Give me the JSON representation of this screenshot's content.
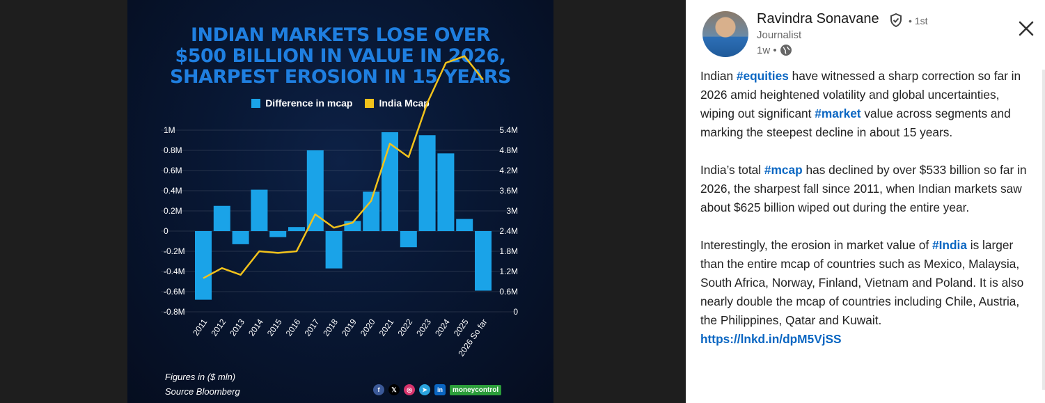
{
  "poster": {
    "title_lines": [
      "INDIAN MARKETS LOSE OVER",
      "$500 BILLION IN VALUE IN 2026,",
      "SHARPEST EROSION IN 15 YEARS"
    ],
    "legend": {
      "bar_label": "Difference in mcap",
      "line_label": "India Mcap"
    },
    "footer_note": "Figures in ($ mln)",
    "source": "Source Bloomberg",
    "brand": "moneycontrol",
    "social_icons": [
      "facebook-icon",
      "x-icon",
      "instagram-icon",
      "telegram-icon",
      "linkedin-icon"
    ],
    "colors": {
      "bar": "#1aa3e8",
      "line": "#f2c21b",
      "title": "#1f7fe0"
    }
  },
  "chart_data": {
    "type": "bar",
    "title": "INDIAN MARKETS LOSE OVER $500 BILLION IN VALUE IN 2026, SHARPEST EROSION IN 15 YEARS",
    "categories": [
      "2011",
      "2012",
      "2013",
      "2014",
      "2015",
      "2016",
      "2017",
      "2018",
      "2019",
      "2020",
      "2021",
      "2022",
      "2023",
      "2024",
      "2025",
      "2026 So far"
    ],
    "series": [
      {
        "name": "Difference in mcap",
        "type": "bar",
        "axis": "left",
        "values": [
          -0.68,
          0.25,
          -0.13,
          0.41,
          -0.06,
          0.04,
          0.8,
          -0.37,
          0.1,
          0.39,
          0.98,
          -0.16,
          0.95,
          0.77,
          0.12,
          -0.59
        ]
      },
      {
        "name": "India Mcap",
        "type": "line",
        "axis": "right",
        "values": [
          1.0,
          1.3,
          1.1,
          1.8,
          1.75,
          1.8,
          2.9,
          2.5,
          2.65,
          3.3,
          5.0,
          4.6,
          6.2,
          7.4,
          7.6,
          6.9
        ]
      }
    ],
    "left_axis": {
      "ticks": [
        "1M",
        "0.8M",
        "0.6M",
        "0.4M",
        "0.2M",
        "0",
        "-0.2M",
        "-0.4M",
        "-0.6M",
        "-0.8M"
      ],
      "ylim": [
        -0.8,
        1.0
      ]
    },
    "right_axis": {
      "ticks": [
        "5.4M",
        "4.8M",
        "4.2M",
        "3.6M",
        "3M",
        "2.4M",
        "1.8M",
        "1.2M",
        "0.6M",
        "0"
      ]
    },
    "grid": true,
    "legend_placement": "top-center"
  },
  "post": {
    "author": "Ravindra Sonavane",
    "degree": "• 1st",
    "headline": "Journalist",
    "time": "1w •",
    "paragraphs": [
      [
        {
          "t": "Indian "
        },
        {
          "t": "#equities",
          "tag": true
        },
        {
          "t": " have witnessed a sharp correction so far in 2026 amid heightened volatility and global uncertainties, wiping out significant "
        },
        {
          "t": "#market",
          "tag": true
        },
        {
          "t": " value across segments and marking the steepest decline in about 15 years."
        }
      ],
      [
        {
          "t": "India’s total "
        },
        {
          "t": "#mcap",
          "tag": true
        },
        {
          "t": " has declined by over $533 billion so far in 2026, the sharpest fall since 2011, when Indian markets saw about $625 billion wiped out during the entire year."
        }
      ],
      [
        {
          "t": "Interestingly, the erosion in market value of "
        },
        {
          "t": "#India",
          "tag": true
        },
        {
          "t": " is larger than the entire mcap of countries such as Mexico, Malaysia, South Africa, Norway, Finland, Vietnam and Poland. It is also nearly double the mcap of countries including Chile, Austria, the Philippines, Qatar and Kuwait."
        }
      ]
    ],
    "link": "https://lnkd.in/dpM5VjSS"
  }
}
